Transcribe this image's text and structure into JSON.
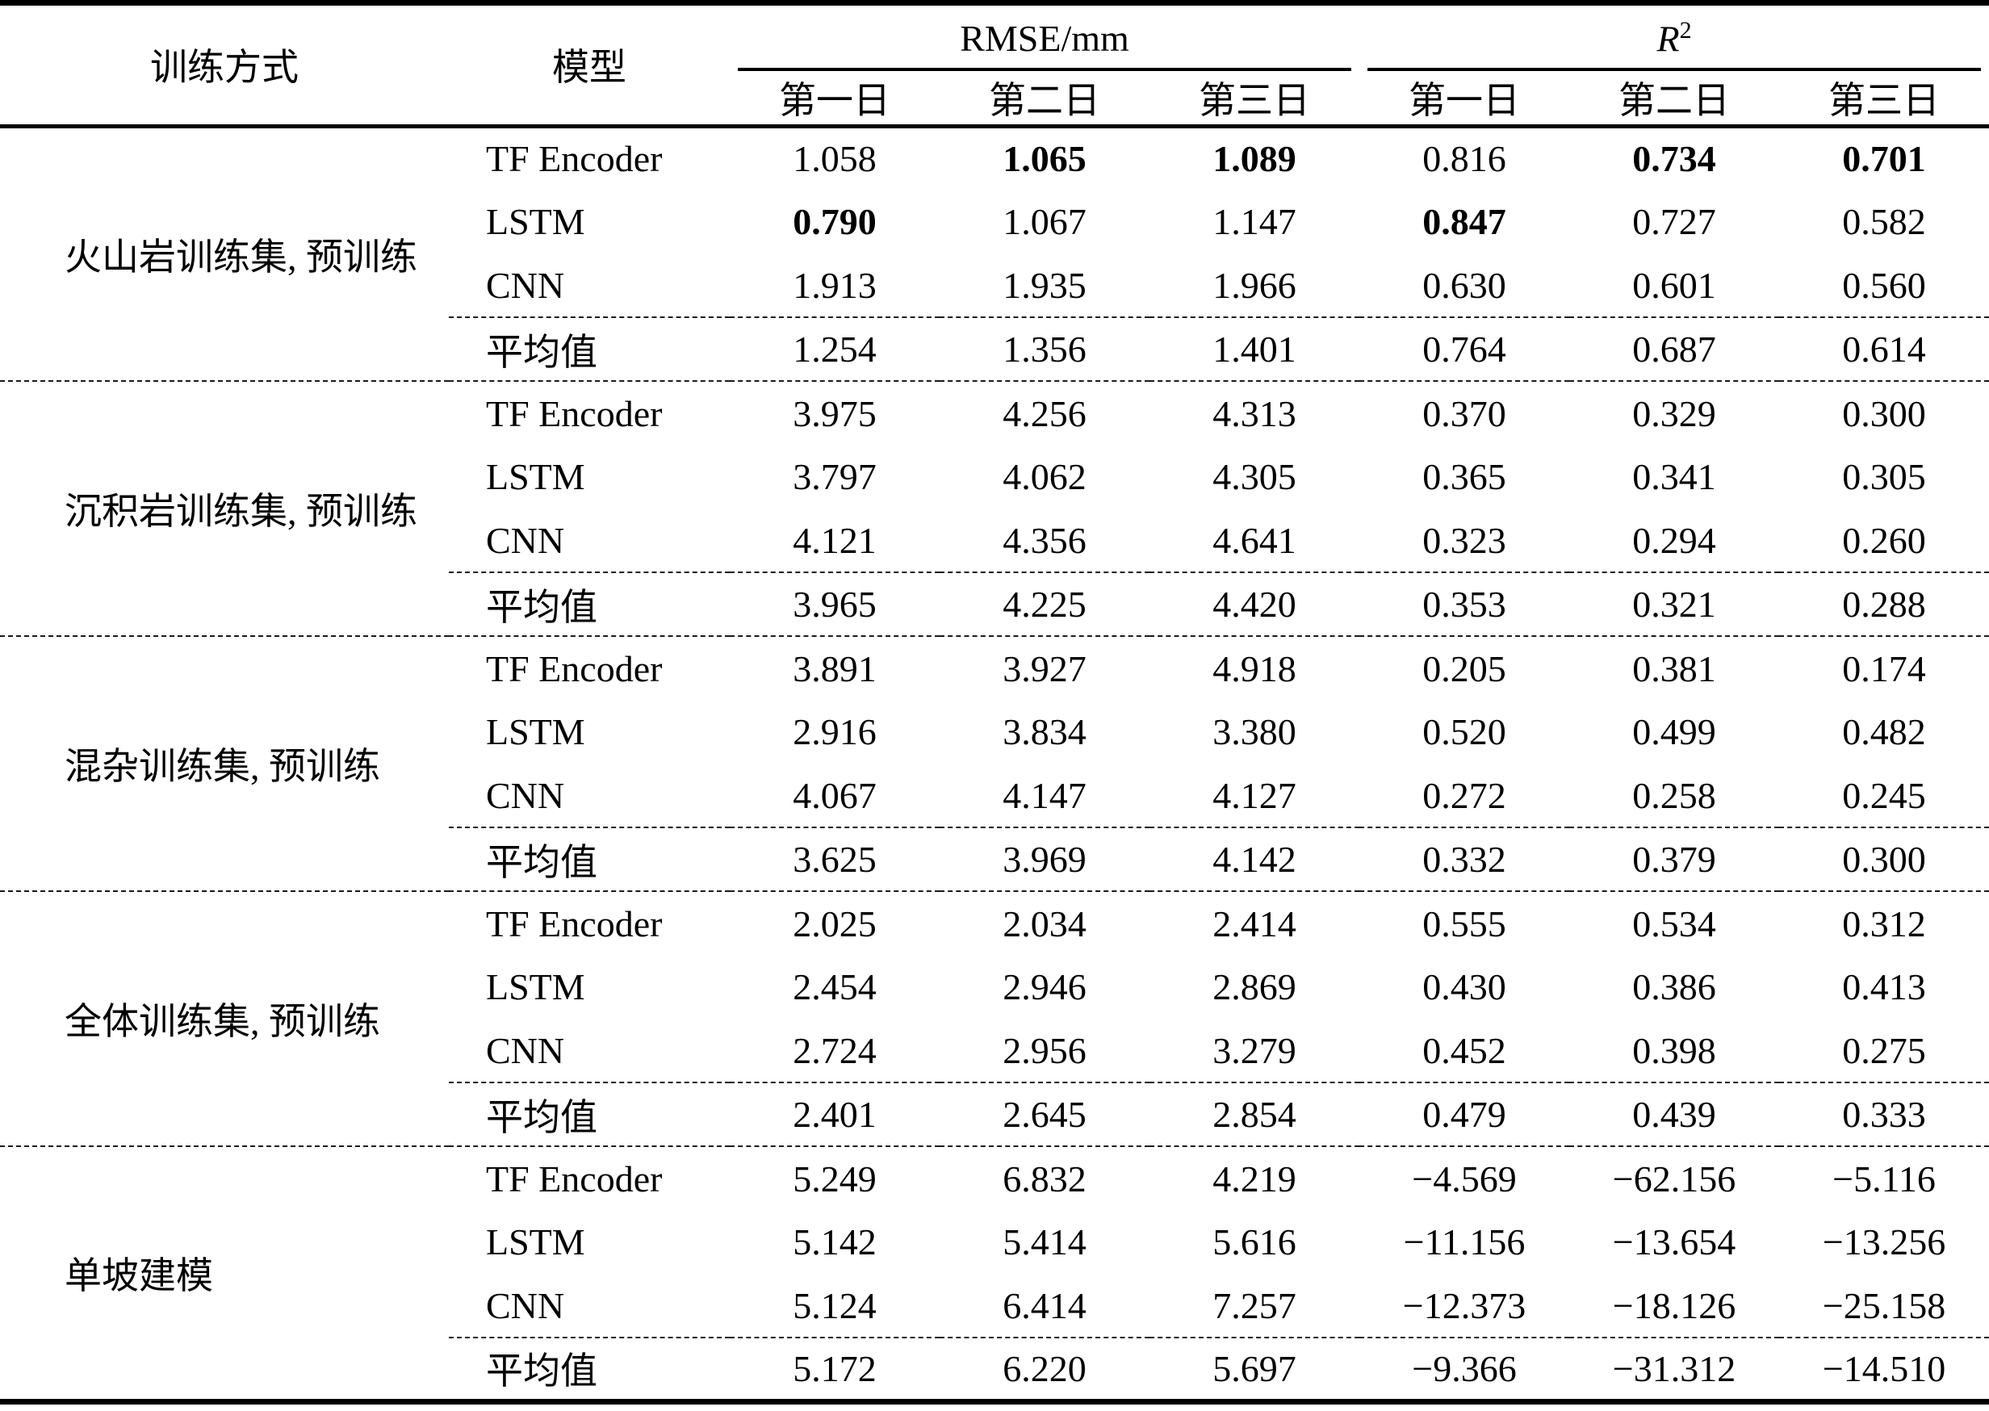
{
  "chart_data": {
    "type": "table",
    "title": "",
    "headers": {
      "training_method": "训练方式",
      "model": "模型",
      "rmse_group": "RMSE/mm",
      "r2_base": "R",
      "r2_sup": "2",
      "day_columns": [
        "第一日",
        "第二日",
        "第三日",
        "第一日",
        "第二日",
        "第三日"
      ]
    },
    "groups": [
      {
        "label": "火山岩训练集, 预训练",
        "rows": [
          {
            "model": "TF Encoder",
            "values": [
              "1.058",
              "1.065",
              "1.089",
              "0.816",
              "0.734",
              "0.701"
            ],
            "bold": [
              false,
              true,
              true,
              false,
              true,
              true
            ]
          },
          {
            "model": "LSTM",
            "values": [
              "0.790",
              "1.067",
              "1.147",
              "0.847",
              "0.727",
              "0.582"
            ],
            "bold": [
              true,
              false,
              false,
              true,
              false,
              false
            ]
          },
          {
            "model": "CNN",
            "values": [
              "1.913",
              "1.935",
              "1.966",
              "0.630",
              "0.601",
              "0.560"
            ]
          },
          {
            "model": "平均值",
            "values": [
              "1.254",
              "1.356",
              "1.401",
              "0.764",
              "0.687",
              "0.614"
            ],
            "is_average": true
          }
        ]
      },
      {
        "label": "沉积岩训练集, 预训练",
        "rows": [
          {
            "model": "TF Encoder",
            "values": [
              "3.975",
              "4.256",
              "4.313",
              "0.370",
              "0.329",
              "0.300"
            ]
          },
          {
            "model": "LSTM",
            "values": [
              "3.797",
              "4.062",
              "4.305",
              "0.365",
              "0.341",
              "0.305"
            ]
          },
          {
            "model": "CNN",
            "values": [
              "4.121",
              "4.356",
              "4.641",
              "0.323",
              "0.294",
              "0.260"
            ]
          },
          {
            "model": "平均值",
            "values": [
              "3.965",
              "4.225",
              "4.420",
              "0.353",
              "0.321",
              "0.288"
            ],
            "is_average": true
          }
        ]
      },
      {
        "label": "混杂训练集, 预训练",
        "rows": [
          {
            "model": "TF Encoder",
            "values": [
              "3.891",
              "3.927",
              "4.918",
              "0.205",
              "0.381",
              "0.174"
            ]
          },
          {
            "model": "LSTM",
            "values": [
              "2.916",
              "3.834",
              "3.380",
              "0.520",
              "0.499",
              "0.482"
            ]
          },
          {
            "model": "CNN",
            "values": [
              "4.067",
              "4.147",
              "4.127",
              "0.272",
              "0.258",
              "0.245"
            ]
          },
          {
            "model": "平均值",
            "values": [
              "3.625",
              "3.969",
              "4.142",
              "0.332",
              "0.379",
              "0.300"
            ],
            "is_average": true
          }
        ]
      },
      {
        "label": "全体训练集, 预训练",
        "rows": [
          {
            "model": "TF Encoder",
            "values": [
              "2.025",
              "2.034",
              "2.414",
              "0.555",
              "0.534",
              "0.312"
            ]
          },
          {
            "model": "LSTM",
            "values": [
              "2.454",
              "2.946",
              "2.869",
              "0.430",
              "0.386",
              "0.413"
            ]
          },
          {
            "model": "CNN",
            "values": [
              "2.724",
              "2.956",
              "3.279",
              "0.452",
              "0.398",
              "0.275"
            ]
          },
          {
            "model": "平均值",
            "values": [
              "2.401",
              "2.645",
              "2.854",
              "0.479",
              "0.439",
              "0.333"
            ],
            "is_average": true
          }
        ]
      },
      {
        "label": "单坡建模",
        "rows": [
          {
            "model": "TF Encoder",
            "values": [
              "5.249",
              "6.832",
              "4.219",
              "−4.569",
              "−62.156",
              "−5.116"
            ]
          },
          {
            "model": "LSTM",
            "values": [
              "5.142",
              "5.414",
              "5.616",
              "−11.156",
              "−13.654",
              "−13.256"
            ]
          },
          {
            "model": "CNN",
            "values": [
              "5.124",
              "6.414",
              "7.257",
              "−12.373",
              "−18.126",
              "−25.158"
            ]
          },
          {
            "model": "平均值",
            "values": [
              "5.172",
              "6.220",
              "5.697",
              "−9.366",
              "−31.312",
              "−14.510"
            ],
            "is_average": true
          }
        ]
      }
    ]
  }
}
